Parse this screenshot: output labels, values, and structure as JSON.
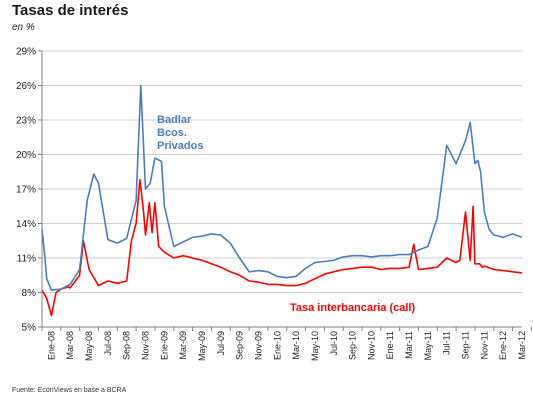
{
  "title": "Tasas de interés",
  "subtitle": "en %",
  "source": "Fuente: EconViews en base a BCRA",
  "colors": {
    "badlar": "#4a7ebb",
    "call": "#ff0000",
    "axis": "#808080"
  },
  "chart_data": {
    "type": "line",
    "title": "Tasas de interés",
    "ylabel": "en %",
    "ylim": [
      5,
      29
    ],
    "yticks": [
      5,
      8,
      11,
      14,
      17,
      20,
      23,
      26,
      29
    ],
    "ytick_labels": [
      "5%",
      "8%",
      "11%",
      "14%",
      "17%",
      "20%",
      "23%",
      "26%",
      "29%"
    ],
    "xlim": [
      0,
      51
    ],
    "xtick_labels": [
      "Ene-08",
      "Mar-08",
      "May-08",
      "Jul-08",
      "Sep-08",
      "Nov-08",
      "Ene-09",
      "Mar-09",
      "May-09",
      "Jul-09",
      "Sep-09",
      "Nov-09",
      "Ene-10",
      "Mar-10",
      "May-10",
      "Jul-10",
      "Sep-10",
      "Nov-10",
      "Ene-11",
      "Mar-11",
      "May-11",
      "Jul-11",
      "Sep-11",
      "Nov-11",
      "Ene-12",
      "Mar-12"
    ],
    "series": [
      {
        "name": "Badlar Bcos. Privados",
        "annotation": [
          "Badlar",
          "Bcos.",
          "Privados"
        ],
        "x": [
          0,
          0.2,
          0.5,
          1,
          2,
          3,
          4,
          4.8,
          5.5,
          6,
          7,
          8,
          9,
          10,
          10.5,
          11,
          11.5,
          12,
          12.7,
          13,
          14,
          15,
          16,
          17,
          18,
          19,
          20,
          21,
          22,
          23,
          24,
          25,
          26,
          27,
          28,
          29,
          30,
          31,
          32,
          33,
          34,
          35,
          36,
          37,
          38,
          39,
          40,
          41,
          42,
          43,
          44,
          45,
          45.5,
          46,
          46.3,
          46.6,
          47,
          47.5,
          48,
          49,
          50,
          51
        ],
        "y": [
          13.5,
          12.0,
          9.2,
          8.2,
          8.3,
          8.7,
          10.0,
          16.0,
          18.3,
          17.5,
          12.6,
          12.3,
          12.7,
          16.0,
          26.0,
          17.0,
          17.5,
          19.7,
          19.4,
          15.5,
          12.0,
          12.4,
          12.8,
          12.9,
          13.1,
          13.0,
          12.3,
          11.0,
          9.8,
          9.9,
          9.8,
          9.4,
          9.3,
          9.4,
          10.1,
          10.6,
          10.7,
          10.8,
          11.1,
          11.2,
          11.2,
          11.1,
          11.2,
          11.2,
          11.3,
          11.3,
          11.7,
          12.0,
          14.5,
          20.8,
          19.2,
          21.2,
          22.8,
          19.2,
          19.5,
          18.5,
          15.0,
          13.5,
          13.0,
          12.8,
          13.1,
          12.8
        ]
      },
      {
        "name": "Tasa interbancaria (call)",
        "x": [
          0,
          0.5,
          1,
          1.5,
          2,
          2.8,
          3,
          4,
          4.4,
          5,
          6,
          7,
          8,
          9,
          9.5,
          10,
          10.4,
          10.8,
          11,
          11.4,
          11.7,
          12,
          12.4,
          13,
          14,
          15,
          16,
          17,
          18,
          19,
          20,
          21,
          22,
          23,
          24,
          25,
          26,
          27,
          28,
          29,
          30,
          31,
          32,
          33,
          34,
          35,
          36,
          37,
          38,
          39,
          39.5,
          40,
          41,
          42,
          43,
          44,
          44.4,
          45,
          45.5,
          45.8,
          46,
          46.5,
          46.8,
          47,
          48,
          49,
          50,
          51
        ],
        "y": [
          8.2,
          7.5,
          6.0,
          8.0,
          8.3,
          8.5,
          8.4,
          9.5,
          12.5,
          10.0,
          8.6,
          9.0,
          8.8,
          9.0,
          12.5,
          14.0,
          17.8,
          15.0,
          13.0,
          15.8,
          13.2,
          15.8,
          12.0,
          11.5,
          11.0,
          11.2,
          11.0,
          10.8,
          10.5,
          10.2,
          9.8,
          9.5,
          9.0,
          8.9,
          8.7,
          8.7,
          8.6,
          8.6,
          8.8,
          9.2,
          9.6,
          9.8,
          10.0,
          10.1,
          10.2,
          10.2,
          10.0,
          10.1,
          10.1,
          10.2,
          12.2,
          10.0,
          10.1,
          10.2,
          11.0,
          10.6,
          10.8,
          15.0,
          10.8,
          15.5,
          10.5,
          10.5,
          10.2,
          10.3,
          10.0,
          9.9,
          9.8,
          9.7
        ]
      }
    ],
    "annotations": [
      "Badlar Bcos. Privados",
      "Tasa interbancaria (call)"
    ],
    "grid": "horizontal"
  }
}
